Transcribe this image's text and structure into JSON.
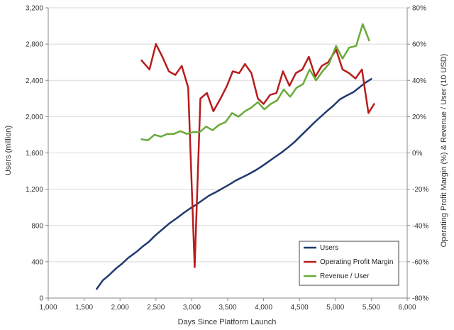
{
  "chart_data": {
    "type": "line",
    "xlabel": "Days Since Platform Launch",
    "ylabel_left": "Users (million)",
    "ylabel_right": "Operating Profit Margin (%) & Revenue / User (10 USD)",
    "xlim": [
      1000,
      6000
    ],
    "ylim_left": [
      0,
      3200
    ],
    "ylim_right": [
      -80,
      80
    ],
    "x_ticks": [
      "1,000",
      "2,000",
      "3,000",
      "4,000",
      "5,000",
      "6,000"
    ],
    "x_tick_values": [
      1000,
      1500,
      2000,
      2500,
      3000,
      3500,
      4000,
      4500,
      5000,
      5500,
      6000
    ],
    "x_tick_labels": [
      "1,000",
      "1,500",
      "2,000",
      "2,500",
      "3,000",
      "3,500",
      "4,000",
      "4,500",
      "5,000",
      "5,500",
      "6,000"
    ],
    "y_left_tick_values": [
      0,
      400,
      800,
      1200,
      1600,
      2000,
      2400,
      2800,
      3200
    ],
    "y_left_tick_labels": [
      "0",
      "400",
      "800",
      "1,200",
      "1,600",
      "2,000",
      "2,400",
      "2,800",
      "3,200"
    ],
    "y_right_tick_values": [
      -80,
      -60,
      -40,
      -20,
      0,
      20,
      40,
      60,
      80
    ],
    "y_right_tick_labels": [
      "-80%",
      "-60%",
      "-40%",
      "-20%",
      "0%",
      "20%",
      "40%",
      "60%",
      "80%"
    ],
    "grid": "horizontal",
    "legend_position": "bottom-right",
    "series": [
      {
        "name": "Users",
        "axis": "left",
        "color": "#1f3a6e",
        "points": [
          [
            1675,
            100
          ],
          [
            1760,
            195
          ],
          [
            1850,
            255
          ],
          [
            1950,
            330
          ],
          [
            2030,
            380
          ],
          [
            2110,
            440
          ],
          [
            2230,
            510
          ],
          [
            2310,
            565
          ],
          [
            2400,
            620
          ],
          [
            2490,
            690
          ],
          [
            2580,
            750
          ],
          [
            2690,
            825
          ],
          [
            2790,
            880
          ],
          [
            2880,
            935
          ],
          [
            2970,
            985
          ],
          [
            3060,
            1030
          ],
          [
            3150,
            1080
          ],
          [
            3240,
            1130
          ],
          [
            3340,
            1170
          ],
          [
            3430,
            1210
          ],
          [
            3520,
            1250
          ],
          [
            3610,
            1295
          ],
          [
            3700,
            1330
          ],
          [
            3790,
            1365
          ],
          [
            3880,
            1405
          ],
          [
            3970,
            1450
          ],
          [
            4060,
            1500
          ],
          [
            4150,
            1550
          ],
          [
            4250,
            1605
          ],
          [
            4340,
            1660
          ],
          [
            4430,
            1720
          ],
          [
            4520,
            1790
          ],
          [
            4610,
            1860
          ],
          [
            4700,
            1930
          ],
          [
            4790,
            1995
          ],
          [
            4880,
            2060
          ],
          [
            4970,
            2120
          ],
          [
            5060,
            2190
          ],
          [
            5150,
            2230
          ],
          [
            5250,
            2270
          ],
          [
            5330,
            2320
          ],
          [
            5410,
            2370
          ],
          [
            5500,
            2415
          ]
        ]
      },
      {
        "name": "Operating Profit Margin",
        "axis": "right",
        "color": "#b81c1c",
        "points": [
          [
            2300,
            51
          ],
          [
            2410,
            46
          ],
          [
            2500,
            60
          ],
          [
            2590,
            53
          ],
          [
            2680,
            45
          ],
          [
            2770,
            43
          ],
          [
            2860,
            48
          ],
          [
            2950,
            36
          ],
          [
            3040,
            -63
          ],
          [
            3120,
            30
          ],
          [
            3210,
            33
          ],
          [
            3300,
            23
          ],
          [
            3400,
            30
          ],
          [
            3490,
            37
          ],
          [
            3570,
            45
          ],
          [
            3660,
            44
          ],
          [
            3740,
            49
          ],
          [
            3830,
            44
          ],
          [
            3920,
            30
          ],
          [
            4000,
            27
          ],
          [
            4090,
            32
          ],
          [
            4180,
            33
          ],
          [
            4270,
            45
          ],
          [
            4360,
            37
          ],
          [
            4450,
            44
          ],
          [
            4540,
            46
          ],
          [
            4630,
            53
          ],
          [
            4720,
            42
          ],
          [
            4810,
            48
          ],
          [
            4900,
            50
          ],
          [
            5010,
            57
          ],
          [
            5100,
            46
          ],
          [
            5190,
            44
          ],
          [
            5280,
            41
          ],
          [
            5370,
            46
          ],
          [
            5460,
            22
          ],
          [
            5540,
            27
          ]
        ]
      },
      {
        "name": "Revenue / User",
        "axis": "right",
        "color": "#6aaa3a",
        "points": [
          [
            2300,
            7.5
          ],
          [
            2390,
            7
          ],
          [
            2480,
            10
          ],
          [
            2570,
            9
          ],
          [
            2660,
            10.5
          ],
          [
            2750,
            10.5
          ],
          [
            2840,
            12
          ],
          [
            2930,
            10.5
          ],
          [
            3020,
            11.5
          ],
          [
            3110,
            11.5
          ],
          [
            3200,
            14.5
          ],
          [
            3290,
            12.5
          ],
          [
            3380,
            15.5
          ],
          [
            3470,
            17
          ],
          [
            3560,
            22
          ],
          [
            3650,
            20
          ],
          [
            3740,
            23
          ],
          [
            3830,
            25
          ],
          [
            3920,
            28
          ],
          [
            4010,
            24
          ],
          [
            4100,
            27
          ],
          [
            4190,
            29
          ],
          [
            4280,
            35
          ],
          [
            4370,
            31
          ],
          [
            4460,
            36
          ],
          [
            4550,
            38
          ],
          [
            4640,
            46
          ],
          [
            4730,
            40
          ],
          [
            4820,
            45
          ],
          [
            4910,
            49
          ],
          [
            5010,
            59
          ],
          [
            5100,
            52
          ],
          [
            5190,
            58
          ],
          [
            5290,
            59
          ],
          [
            5380,
            71
          ],
          [
            5470,
            62
          ]
        ]
      }
    ]
  }
}
